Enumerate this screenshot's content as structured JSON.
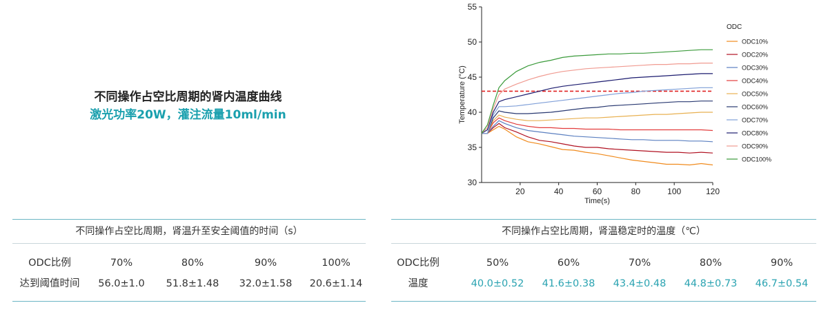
{
  "heading": {
    "title": "不同操作占空比周期的肾内温度曲线",
    "subtitle": "激光功率20W，灌注流量10ml/min"
  },
  "chart_data": {
    "type": "line",
    "xlabel": "Time(s)",
    "ylabel": "Temperature (°C)",
    "xlim": [
      0,
      120
    ],
    "ylim": [
      30,
      55
    ],
    "xticks": [
      20,
      40,
      60,
      80,
      100,
      120
    ],
    "yticks": [
      30,
      35,
      40,
      45,
      50,
      55
    ],
    "legend_title": "ODC",
    "legend_position": "right",
    "threshold": {
      "value": 43,
      "color": "#e02020",
      "style": "dashed"
    },
    "series": [
      {
        "name": "ODC10%",
        "color": "#f08a1c",
        "x": [
          0,
          3,
          6,
          9,
          12,
          18,
          24,
          30,
          36,
          42,
          48,
          54,
          60,
          66,
          72,
          78,
          84,
          90,
          96,
          102,
          108,
          114,
          120
        ],
        "y": [
          37,
          37,
          37.5,
          38,
          37.6,
          36.5,
          35.8,
          35.5,
          35.1,
          34.7,
          34.6,
          34.3,
          34.1,
          33.8,
          33.5,
          33.2,
          33.0,
          32.8,
          32.6,
          32.6,
          32.5,
          32.7,
          32.5
        ]
      },
      {
        "name": "ODC20%",
        "color": "#b01020",
        "x": [
          0,
          3,
          6,
          9,
          12,
          18,
          24,
          30,
          36,
          42,
          48,
          54,
          60,
          66,
          72,
          78,
          84,
          90,
          96,
          102,
          108,
          114,
          120
        ],
        "y": [
          37,
          37,
          37.8,
          38.4,
          37.8,
          37.2,
          36.5,
          36.0,
          35.8,
          35.5,
          35.2,
          35.0,
          35.0,
          34.8,
          34.7,
          34.6,
          34.5,
          34.4,
          34.3,
          34.3,
          34.2,
          34.3,
          34.2
        ]
      },
      {
        "name": "ODC30%",
        "color": "#5a7fc0",
        "x": [
          0,
          3,
          6,
          9,
          12,
          18,
          24,
          30,
          36,
          42,
          48,
          54,
          60,
          66,
          72,
          78,
          84,
          90,
          96,
          102,
          108,
          114,
          120
        ],
        "y": [
          37,
          37,
          38,
          38.8,
          38.4,
          37.8,
          37.4,
          37.2,
          37.0,
          36.8,
          36.6,
          36.5,
          36.4,
          36.3,
          36.2,
          36.1,
          36.1,
          36.0,
          36.0,
          36.0,
          35.9,
          35.9,
          35.8
        ]
      },
      {
        "name": "ODC40%",
        "color": "#e23c3c",
        "x": [
          0,
          3,
          6,
          9,
          12,
          18,
          24,
          30,
          36,
          42,
          48,
          54,
          60,
          66,
          72,
          78,
          84,
          90,
          96,
          102,
          108,
          114,
          120
        ],
        "y": [
          37,
          37,
          38.5,
          39.2,
          38.8,
          38.3,
          38.0,
          37.8,
          37.8,
          37.7,
          37.7,
          37.6,
          37.6,
          37.6,
          37.5,
          37.5,
          37.5,
          37.5,
          37.5,
          37.5,
          37.5,
          37.5,
          37.4
        ]
      },
      {
        "name": "ODC50%",
        "color": "#e8b050",
        "x": [
          0,
          3,
          6,
          9,
          12,
          18,
          24,
          30,
          36,
          42,
          48,
          54,
          60,
          66,
          72,
          78,
          84,
          90,
          96,
          102,
          108,
          114,
          120
        ],
        "y": [
          37,
          37,
          38.8,
          39.6,
          39.3,
          39.0,
          38.8,
          38.8,
          38.9,
          39.0,
          39.1,
          39.2,
          39.2,
          39.3,
          39.4,
          39.5,
          39.6,
          39.7,
          39.7,
          39.8,
          39.9,
          40.0,
          40.0
        ]
      },
      {
        "name": "ODC60%",
        "color": "#283870",
        "x": [
          0,
          3,
          6,
          9,
          12,
          18,
          24,
          30,
          36,
          42,
          48,
          54,
          60,
          66,
          72,
          78,
          84,
          90,
          96,
          102,
          108,
          114,
          120
        ],
        "y": [
          37,
          37,
          39.2,
          40.2,
          40.0,
          39.8,
          39.8,
          39.9,
          40.0,
          40.2,
          40.4,
          40.6,
          40.7,
          40.9,
          41.0,
          41.1,
          41.2,
          41.3,
          41.4,
          41.5,
          41.5,
          41.6,
          41.6
        ]
      },
      {
        "name": "ODC70%",
        "color": "#7f9fd8",
        "x": [
          0,
          3,
          6,
          9,
          12,
          18,
          24,
          30,
          36,
          42,
          48,
          54,
          60,
          66,
          72,
          78,
          84,
          90,
          96,
          102,
          108,
          114,
          120
        ],
        "y": [
          37,
          37,
          39.6,
          40.8,
          40.8,
          40.9,
          41.1,
          41.3,
          41.5,
          41.7,
          41.9,
          42.1,
          42.3,
          42.5,
          42.7,
          42.8,
          43.0,
          43.1,
          43.2,
          43.3,
          43.4,
          43.5,
          43.5
        ]
      },
      {
        "name": "ODC80%",
        "color": "#1a1a6e",
        "x": [
          0,
          3,
          6,
          9,
          12,
          18,
          24,
          30,
          36,
          42,
          48,
          54,
          60,
          66,
          72,
          78,
          84,
          90,
          96,
          102,
          108,
          114,
          120
        ],
        "y": [
          37,
          37.5,
          40.0,
          41.5,
          41.8,
          42.2,
          42.6,
          43.0,
          43.4,
          43.7,
          43.9,
          44.1,
          44.3,
          44.5,
          44.7,
          44.9,
          45.0,
          45.1,
          45.2,
          45.3,
          45.4,
          45.5,
          45.5
        ]
      },
      {
        "name": "ODC90%",
        "color": "#f09a90",
        "x": [
          0,
          3,
          6,
          9,
          12,
          18,
          24,
          30,
          36,
          42,
          48,
          54,
          60,
          66,
          72,
          78,
          84,
          90,
          96,
          102,
          108,
          114,
          120
        ],
        "y": [
          37,
          37.8,
          40.5,
          42.5,
          43.3,
          44.0,
          44.6,
          45.1,
          45.5,
          45.8,
          46.0,
          46.2,
          46.3,
          46.4,
          46.5,
          46.6,
          46.7,
          46.8,
          46.8,
          46.9,
          46.9,
          47.0,
          47.0
        ]
      },
      {
        "name": "ODC100%",
        "color": "#3a9a3a",
        "x": [
          0,
          3,
          6,
          9,
          12,
          18,
          24,
          30,
          36,
          42,
          48,
          54,
          60,
          66,
          72,
          78,
          84,
          90,
          96,
          102,
          108,
          114,
          120
        ],
        "y": [
          37,
          38.2,
          41.0,
          43.5,
          44.5,
          45.8,
          46.6,
          47.1,
          47.4,
          47.8,
          48.0,
          48.1,
          48.2,
          48.3,
          48.3,
          48.4,
          48.4,
          48.5,
          48.6,
          48.7,
          48.8,
          48.9,
          48.9
        ]
      }
    ]
  },
  "table_left": {
    "caption": "不同操作占空比周期，肾温升至安全阈值的时间（s）",
    "row1": [
      "ODC比例",
      "70%",
      "80%",
      "90%",
      "100%"
    ],
    "row2": [
      "达到阈值时间",
      "56.0±1.0",
      "51.8±1.48",
      "32.0±1.58",
      "20.6±1.14"
    ]
  },
  "table_right": {
    "caption": "不同操作占空比周期，肾温稳定时的温度（℃）",
    "row1": [
      "ODC比例",
      "50%",
      "60%",
      "70%",
      "80%",
      "90%"
    ],
    "row2": [
      "温度",
      "40.0±0.52",
      "41.6±0.38",
      "43.4±0.48",
      "44.8±0.73",
      "46.7±0.54"
    ],
    "value_color": "#2aa3b1"
  }
}
